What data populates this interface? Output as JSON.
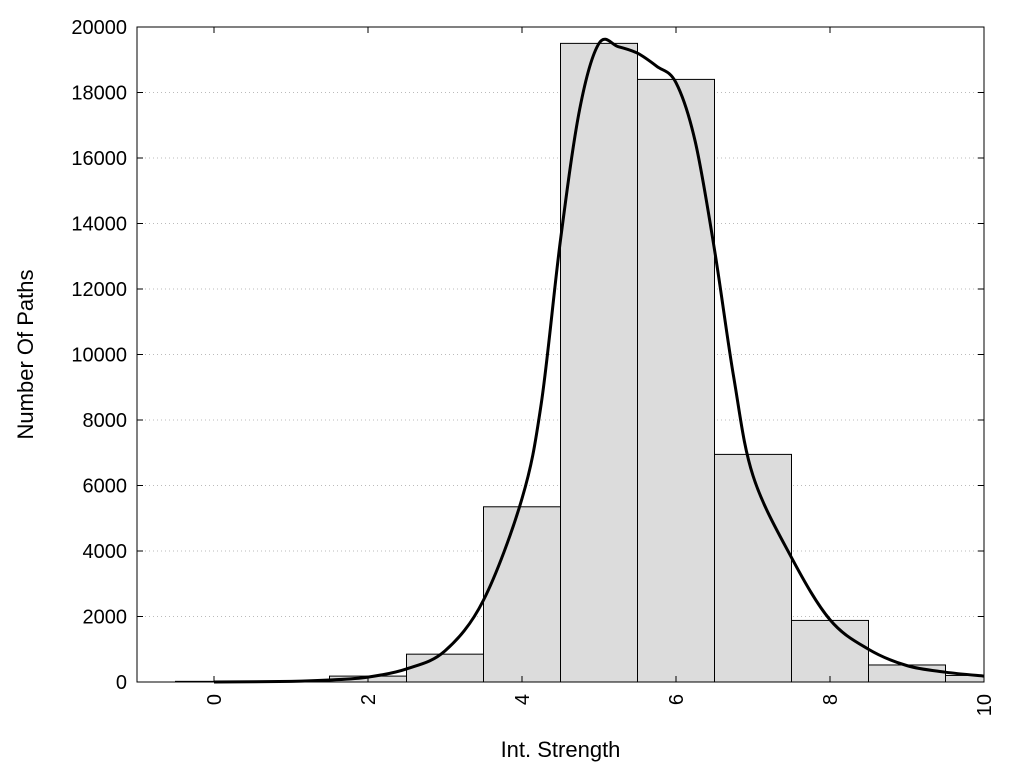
{
  "chart_data": {
    "type": "bar",
    "title": "",
    "xlabel": "Int. Strength",
    "ylabel": "Number Of Paths",
    "xlim": [
      -1,
      10
    ],
    "ylim": [
      0,
      20000
    ],
    "grid": "horizontal dotted",
    "x_ticks": [
      0,
      2,
      4,
      6,
      8,
      10
    ],
    "y_ticks": [
      0,
      2000,
      4000,
      6000,
      8000,
      10000,
      12000,
      14000,
      16000,
      18000,
      20000
    ],
    "bin_width": 1,
    "bin_centers": [
      0,
      1,
      2,
      3,
      4,
      5,
      6,
      7,
      8,
      9,
      10
    ],
    "values": [
      20,
      30,
      180,
      850,
      5350,
      19500,
      18400,
      6950,
      1880,
      520,
      200
    ],
    "fit_curve": {
      "x": [
        0,
        1,
        1.5,
        2,
        2.5,
        3,
        3.5,
        4,
        4.25,
        4.5,
        4.75,
        5,
        5.25,
        5.5,
        5.75,
        6,
        6.25,
        6.5,
        6.75,
        7,
        7.5,
        8,
        8.5,
        9,
        9.5,
        10
      ],
      "y": [
        0,
        20,
        60,
        150,
        400,
        950,
        2500,
        5600,
        8500,
        13500,
        17500,
        19500,
        19400,
        19200,
        18800,
        18300,
        16500,
        13200,
        9300,
        6300,
        3800,
        1900,
        1000,
        500,
        300,
        180
      ]
    },
    "colors": {
      "bar_fill": "#dcdcdc",
      "bar_stroke": "#000000",
      "curve": "#000000",
      "grid": "#bbbbbb"
    }
  }
}
